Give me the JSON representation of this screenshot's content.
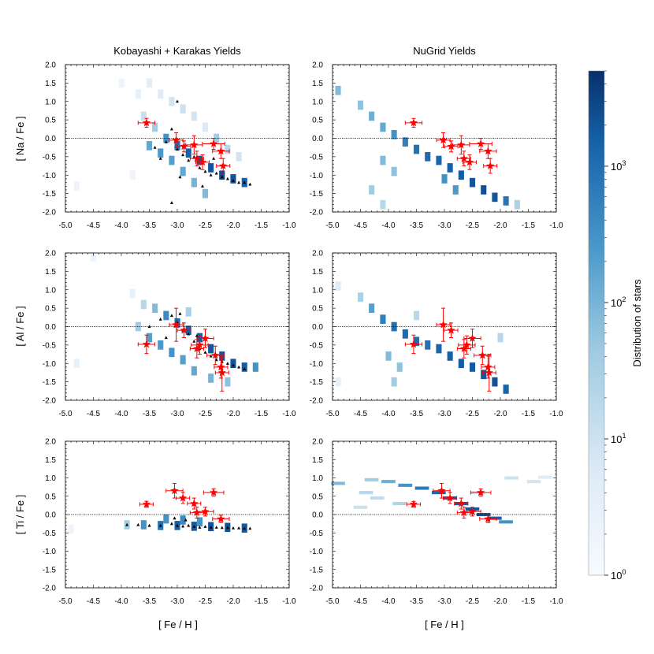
{
  "chart_data": {
    "type": "heatmap",
    "column_titles": [
      "Kobayashi + Karakas Yields",
      "NuGrid Yields"
    ],
    "xlabel": "[ Fe / H ]",
    "ylabels": [
      "[ Na / Fe ]",
      "[ Al / Fe ]",
      "[ Ti / Fe ]"
    ],
    "xlim": [
      -5.0,
      -1.0
    ],
    "ylim": [
      -2.0,
      2.0
    ],
    "x_ticks": [
      "-5.0",
      "-4.5",
      "-4.0",
      "-3.5",
      "-3.0",
      "-2.5",
      "-2.0",
      "-1.5",
      "-1.0"
    ],
    "y_ticks": [
      "2.0",
      "1.5",
      "1.0",
      "0.5",
      "0.0",
      "-0.5",
      "-1.0",
      "-1.5",
      "-2.0"
    ],
    "reference_line_y": 0.0,
    "colorbar": {
      "label": "Distribution of stars",
      "scale": "log",
      "range": [
        1,
        5000
      ],
      "ticks": [
        {
          "base": "10",
          "exp": "0",
          "value": 1
        },
        {
          "base": "10",
          "exp": "1",
          "value": 10
        },
        {
          "base": "10",
          "exp": "2",
          "value": 100
        },
        {
          "base": "10",
          "exp": "3",
          "value": 1000
        }
      ],
      "color_low": "#f7fbff",
      "color_mid": "#4a98c9",
      "color_high": "#08306b"
    },
    "observed_stars": {
      "marker": "star",
      "color": "#ff0000",
      "Na": [
        {
          "x": -3.55,
          "y": 0.42,
          "xerr": 0.15,
          "yerr": 0.12
        },
        {
          "x": -3.02,
          "y": -0.05,
          "xerr": 0.12,
          "yerr": 0.2
        },
        {
          "x": -2.88,
          "y": -0.22,
          "xerr": 0.12,
          "yerr": 0.15
        },
        {
          "x": -2.65,
          "y": -0.55,
          "xerr": 0.12,
          "yerr": 0.2
        },
        {
          "x": -2.7,
          "y": -0.18,
          "xerr": 0.15,
          "yerr": 0.25
        },
        {
          "x": -2.55,
          "y": -0.65,
          "xerr": 0.12,
          "yerr": 0.2
        },
        {
          "x": -2.35,
          "y": -0.15,
          "xerr": 0.2,
          "yerr": 0.15
        },
        {
          "x": -2.22,
          "y": -0.35,
          "xerr": 0.15,
          "yerr": 0.2
        },
        {
          "x": -2.18,
          "y": -0.75,
          "xerr": 0.12,
          "yerr": 0.2
        }
      ],
      "Al": [
        {
          "x": -3.55,
          "y": -0.48,
          "xerr": 0.15,
          "yerr": 0.25
        },
        {
          "x": -3.02,
          "y": 0.05,
          "xerr": 0.12,
          "yerr": 0.45
        },
        {
          "x": -2.88,
          "y": -0.1,
          "xerr": 0.12,
          "yerr": 0.2
        },
        {
          "x": -2.65,
          "y": -0.6,
          "xerr": 0.12,
          "yerr": 0.25
        },
        {
          "x": -2.6,
          "y": -0.5,
          "xerr": 0.15,
          "yerr": 0.25
        },
        {
          "x": -2.5,
          "y": -0.32,
          "xerr": 0.15,
          "yerr": 0.25
        },
        {
          "x": -2.32,
          "y": -0.78,
          "xerr": 0.15,
          "yerr": 0.25
        },
        {
          "x": -2.22,
          "y": -1.1,
          "xerr": 0.12,
          "yerr": 0.3
        },
        {
          "x": -2.2,
          "y": -1.25,
          "xerr": 0.12,
          "yerr": 0.5
        }
      ],
      "Ti": [
        {
          "x": -3.55,
          "y": 0.28,
          "xerr": 0.12,
          "yerr": 0.08
        },
        {
          "x": -3.05,
          "y": 0.65,
          "xerr": 0.15,
          "yerr": 0.2
        },
        {
          "x": -2.9,
          "y": 0.45,
          "xerr": 0.12,
          "yerr": 0.15
        },
        {
          "x": -2.7,
          "y": 0.3,
          "xerr": 0.12,
          "yerr": 0.15
        },
        {
          "x": -2.65,
          "y": 0.05,
          "xerr": 0.12,
          "yerr": 0.15
        },
        {
          "x": -2.5,
          "y": 0.08,
          "xerr": 0.15,
          "yerr": 0.12
        },
        {
          "x": -2.35,
          "y": 0.6,
          "xerr": 0.18,
          "yerr": 0.1
        },
        {
          "x": -2.22,
          "y": -0.12,
          "xerr": 0.15,
          "yerr": 0.1
        }
      ]
    },
    "heatmaps": {
      "KK_Na": [
        {
          "x": -4.0,
          "y": 1.5,
          "c": 2
        },
        {
          "x": -3.7,
          "y": 1.2,
          "c": 3
        },
        {
          "x": -3.5,
          "y": 1.5,
          "c": 4
        },
        {
          "x": -3.3,
          "y": 1.2,
          "c": 5
        },
        {
          "x": -3.1,
          "y": 1.0,
          "c": 8
        },
        {
          "x": -2.9,
          "y": 0.8,
          "c": 10
        },
        {
          "x": -2.7,
          "y": 0.6,
          "c": 8
        },
        {
          "x": -2.5,
          "y": 0.3,
          "c": 6
        },
        {
          "x": -3.6,
          "y": 0.6,
          "c": 12
        },
        {
          "x": -3.4,
          "y": 0.3,
          "c": 40
        },
        {
          "x": -3.2,
          "y": 0.0,
          "c": 300
        },
        {
          "x": -3.0,
          "y": -0.2,
          "c": 900
        },
        {
          "x": -2.8,
          "y": -0.4,
          "c": 1500
        },
        {
          "x": -2.6,
          "y": -0.6,
          "c": 1800
        },
        {
          "x": -2.4,
          "y": -0.8,
          "c": 2000
        },
        {
          "x": -2.2,
          "y": -1.0,
          "c": 2500
        },
        {
          "x": -2.0,
          "y": -1.1,
          "c": 2200
        },
        {
          "x": -1.8,
          "y": -1.2,
          "c": 1500
        },
        {
          "x": -3.5,
          "y": -0.2,
          "c": 150
        },
        {
          "x": -3.3,
          "y": -0.4,
          "c": 250
        },
        {
          "x": -3.1,
          "y": -0.6,
          "c": 200
        },
        {
          "x": -2.9,
          "y": -0.9,
          "c": 150
        },
        {
          "x": -2.7,
          "y": -1.2,
          "c": 100
        },
        {
          "x": -2.5,
          "y": -1.5,
          "c": 80
        },
        {
          "x": -2.3,
          "y": 0.0,
          "c": 40
        },
        {
          "x": -2.1,
          "y": -0.3,
          "c": 20
        },
        {
          "x": -1.9,
          "y": -0.5,
          "c": 8
        },
        {
          "x": -4.8,
          "y": -1.3,
          "c": 2
        },
        {
          "x": -3.8,
          "y": -1.0,
          "c": 2
        }
      ],
      "NG_Na": [
        {
          "x": -4.9,
          "y": 1.3,
          "c": 80
        },
        {
          "x": -4.5,
          "y": 0.9,
          "c": 60
        },
        {
          "x": -4.3,
          "y": 0.6,
          "c": 120
        },
        {
          "x": -4.1,
          "y": 0.3,
          "c": 150
        },
        {
          "x": -3.9,
          "y": 0.1,
          "c": 300
        },
        {
          "x": -3.7,
          "y": -0.1,
          "c": 600
        },
        {
          "x": -3.5,
          "y": -0.3,
          "c": 900
        },
        {
          "x": -3.3,
          "y": -0.5,
          "c": 1100
        },
        {
          "x": -3.1,
          "y": -0.6,
          "c": 1300
        },
        {
          "x": -2.9,
          "y": -0.8,
          "c": 1500
        },
        {
          "x": -2.7,
          "y": -1.0,
          "c": 1700
        },
        {
          "x": -2.5,
          "y": -1.2,
          "c": 2000
        },
        {
          "x": -2.3,
          "y": -1.4,
          "c": 2300
        },
        {
          "x": -2.1,
          "y": -1.6,
          "c": 2000
        },
        {
          "x": -1.9,
          "y": -1.7,
          "c": 800
        },
        {
          "x": -1.7,
          "y": -1.8,
          "c": 30
        },
        {
          "x": -4.1,
          "y": -0.6,
          "c": 80
        },
        {
          "x": -3.9,
          "y": -0.9,
          "c": 60
        },
        {
          "x": -4.3,
          "y": -1.4,
          "c": 40
        },
        {
          "x": -3.0,
          "y": -1.1,
          "c": 300
        },
        {
          "x": -2.8,
          "y": -1.4,
          "c": 250
        },
        {
          "x": -4.1,
          "y": -1.8,
          "c": 20
        }
      ],
      "KK_Al": [
        {
          "x": -4.5,
          "y": 1.9,
          "c": 2
        },
        {
          "x": -3.8,
          "y": 0.9,
          "c": 3
        },
        {
          "x": -3.6,
          "y": 0.6,
          "c": 20
        },
        {
          "x": -3.4,
          "y": 0.5,
          "c": 80
        },
        {
          "x": -3.2,
          "y": 0.3,
          "c": 400
        },
        {
          "x": -3.0,
          "y": 0.1,
          "c": 1200
        },
        {
          "x": -2.8,
          "y": -0.1,
          "c": 1500
        },
        {
          "x": -2.6,
          "y": -0.3,
          "c": 1700
        },
        {
          "x": -2.4,
          "y": -0.6,
          "c": 1900
        },
        {
          "x": -2.2,
          "y": -0.8,
          "c": 2200
        },
        {
          "x": -2.0,
          "y": -1.0,
          "c": 2000
        },
        {
          "x": -1.8,
          "y": -1.1,
          "c": 1600
        },
        {
          "x": -1.6,
          "y": -1.1,
          "c": 300
        },
        {
          "x": -3.5,
          "y": -0.3,
          "c": 200
        },
        {
          "x": -3.3,
          "y": -0.5,
          "c": 250
        },
        {
          "x": -3.1,
          "y": -0.7,
          "c": 300
        },
        {
          "x": -2.9,
          "y": -0.9,
          "c": 200
        },
        {
          "x": -2.7,
          "y": -1.2,
          "c": 150
        },
        {
          "x": -2.4,
          "y": -1.4,
          "c": 100
        },
        {
          "x": -2.1,
          "y": -1.5,
          "c": 60
        },
        {
          "x": -3.7,
          "y": 0.0,
          "c": 40
        },
        {
          "x": -4.8,
          "y": -1.0,
          "c": 3
        },
        {
          "x": -2.8,
          "y": 0.4,
          "c": 30
        }
      ],
      "NG_Al": [
        {
          "x": -4.9,
          "y": 1.1,
          "c": 5
        },
        {
          "x": -4.5,
          "y": 0.8,
          "c": 30
        },
        {
          "x": -4.3,
          "y": 0.5,
          "c": 200
        },
        {
          "x": -4.1,
          "y": 0.2,
          "c": 600
        },
        {
          "x": -3.9,
          "y": 0.0,
          "c": 1000
        },
        {
          "x": -3.7,
          "y": -0.2,
          "c": 1200
        },
        {
          "x": -3.5,
          "y": -0.4,
          "c": 1000
        },
        {
          "x": -3.3,
          "y": -0.5,
          "c": 900
        },
        {
          "x": -3.1,
          "y": -0.6,
          "c": 1300
        },
        {
          "x": -2.9,
          "y": -0.8,
          "c": 1500
        },
        {
          "x": -2.7,
          "y": -1.0,
          "c": 1700
        },
        {
          "x": -2.5,
          "y": -1.1,
          "c": 1800
        },
        {
          "x": -2.3,
          "y": -1.3,
          "c": 2000
        },
        {
          "x": -2.1,
          "y": -1.5,
          "c": 2200
        },
        {
          "x": -1.9,
          "y": -1.7,
          "c": 1400
        },
        {
          "x": -4.0,
          "y": -0.8,
          "c": 80
        },
        {
          "x": -3.8,
          "y": -1.1,
          "c": 60
        },
        {
          "x": -3.9,
          "y": -1.5,
          "c": 40
        },
        {
          "x": -3.5,
          "y": 0.3,
          "c": 20
        },
        {
          "x": -4.9,
          "y": -1.5,
          "c": 3
        },
        {
          "x": -2.0,
          "y": -0.3,
          "c": 20
        }
      ],
      "KK_Ti": [
        {
          "x": -4.9,
          "y": -0.4,
          "c": 2
        },
        {
          "x": -3.9,
          "y": -0.28,
          "c": 40
        },
        {
          "x": -3.6,
          "y": -0.28,
          "c": 300
        },
        {
          "x": -3.3,
          "y": -0.3,
          "c": 900
        },
        {
          "x": -3.0,
          "y": -0.3,
          "c": 1500
        },
        {
          "x": -2.7,
          "y": -0.32,
          "c": 1800
        },
        {
          "x": -2.4,
          "y": -0.33,
          "c": 2000
        },
        {
          "x": -2.1,
          "y": -0.35,
          "c": 2200
        },
        {
          "x": -1.8,
          "y": -0.37,
          "c": 1800
        },
        {
          "x": -3.2,
          "y": -0.12,
          "c": 300
        },
        {
          "x": -2.9,
          "y": -0.15,
          "c": 400
        },
        {
          "x": -2.6,
          "y": -0.2,
          "c": 300
        }
      ],
      "NG_Ti": [
        {
          "x": -4.9,
          "y": 0.85,
          "c": 80
        },
        {
          "x": -4.3,
          "y": 0.95,
          "c": 40
        },
        {
          "x": -4.0,
          "y": 0.9,
          "c": 120
        },
        {
          "x": -3.7,
          "y": 0.8,
          "c": 300
        },
        {
          "x": -3.4,
          "y": 0.72,
          "c": 700
        },
        {
          "x": -3.1,
          "y": 0.6,
          "c": 1200
        },
        {
          "x": -2.9,
          "y": 0.45,
          "c": 1500
        },
        {
          "x": -2.7,
          "y": 0.3,
          "c": 1700
        },
        {
          "x": -2.5,
          "y": 0.15,
          "c": 1900
        },
        {
          "x": -2.3,
          "y": 0.0,
          "c": 2000
        },
        {
          "x": -2.1,
          "y": -0.1,
          "c": 1500
        },
        {
          "x": -1.9,
          "y": -0.2,
          "c": 300
        },
        {
          "x": -4.4,
          "y": 0.6,
          "c": 20
        },
        {
          "x": -4.2,
          "y": 0.45,
          "c": 15
        },
        {
          "x": -3.8,
          "y": 0.3,
          "c": 25
        },
        {
          "x": -4.5,
          "y": 0.2,
          "c": 10
        },
        {
          "x": -1.8,
          "y": 1.0,
          "c": 10
        },
        {
          "x": -1.4,
          "y": 0.9,
          "c": 8
        },
        {
          "x": -1.2,
          "y": 1.02,
          "c": 5
        },
        {
          "x": -2.4,
          "y": 0.6,
          "c": 8
        }
      ]
    },
    "kk_model_points": {
      "marker": "triangle",
      "color": "#000000",
      "Na": [
        {
          "x": -3.4,
          "y": -0.25
        },
        {
          "x": -3.2,
          "y": -0.1
        },
        {
          "x": -3.0,
          "y": -0.3
        },
        {
          "x": -2.9,
          "y": -0.45
        },
        {
          "x": -2.8,
          "y": -0.6
        },
        {
          "x": -2.7,
          "y": -0.5
        },
        {
          "x": -2.6,
          "y": -0.8
        },
        {
          "x": -2.5,
          "y": -0.9
        },
        {
          "x": -2.4,
          "y": -1.0
        },
        {
          "x": -2.3,
          "y": -0.95
        },
        {
          "x": -2.2,
          "y": -1.05
        },
        {
          "x": -2.1,
          "y": -1.1
        },
        {
          "x": -2.0,
          "y": -1.15
        },
        {
          "x": -1.9,
          "y": -1.2
        },
        {
          "x": -1.8,
          "y": -1.2
        },
        {
          "x": -1.7,
          "y": -1.25
        },
        {
          "x": -3.1,
          "y": 0.25
        },
        {
          "x": -3.0,
          "y": 1.0
        },
        {
          "x": -3.3,
          "y": -0.55
        },
        {
          "x": -2.95,
          "y": -1.05
        },
        {
          "x": -2.55,
          "y": -1.3
        },
        {
          "x": -3.1,
          "y": -1.75
        },
        {
          "x": -2.35,
          "y": -0.55
        }
      ],
      "Al": [
        {
          "x": -3.5,
          "y": 0.0
        },
        {
          "x": -3.3,
          "y": 0.2
        },
        {
          "x": -3.1,
          "y": 0.3
        },
        {
          "x": -3.0,
          "y": 0.1
        },
        {
          "x": -2.9,
          "y": -0.1
        },
        {
          "x": -2.8,
          "y": -0.2
        },
        {
          "x": -2.7,
          "y": -0.4
        },
        {
          "x": -2.6,
          "y": -0.6
        },
        {
          "x": -2.5,
          "y": -0.7
        },
        {
          "x": -2.4,
          "y": -0.8
        },
        {
          "x": -2.3,
          "y": -0.9
        },
        {
          "x": -2.2,
          "y": -0.95
        },
        {
          "x": -2.1,
          "y": -1.0
        },
        {
          "x": -2.0,
          "y": -1.05
        },
        {
          "x": -1.9,
          "y": -1.1
        },
        {
          "x": -1.8,
          "y": -1.15
        },
        {
          "x": -3.2,
          "y": -0.3
        },
        {
          "x": -2.95,
          "y": 0.35
        },
        {
          "x": -2.65,
          "y": -0.25
        }
      ],
      "Ti": [
        {
          "x": -3.9,
          "y": -0.28
        },
        {
          "x": -3.7,
          "y": -0.28
        },
        {
          "x": -3.5,
          "y": -0.3
        },
        {
          "x": -3.3,
          "y": -0.3
        },
        {
          "x": -3.1,
          "y": -0.25
        },
        {
          "x": -3.0,
          "y": -0.3
        },
        {
          "x": -2.9,
          "y": -0.32
        },
        {
          "x": -2.8,
          "y": -0.3
        },
        {
          "x": -2.7,
          "y": -0.33
        },
        {
          "x": -2.6,
          "y": -0.35
        },
        {
          "x": -2.5,
          "y": -0.33
        },
        {
          "x": -2.4,
          "y": -0.35
        },
        {
          "x": -2.3,
          "y": -0.35
        },
        {
          "x": -2.2,
          "y": -0.36
        },
        {
          "x": -2.1,
          "y": -0.36
        },
        {
          "x": -2.0,
          "y": -0.37
        },
        {
          "x": -1.9,
          "y": -0.37
        },
        {
          "x": -1.8,
          "y": -0.38
        },
        {
          "x": -1.7,
          "y": -0.38
        },
        {
          "x": -3.05,
          "y": -0.1
        },
        {
          "x": -2.85,
          "y": -0.15
        }
      ]
    }
  }
}
